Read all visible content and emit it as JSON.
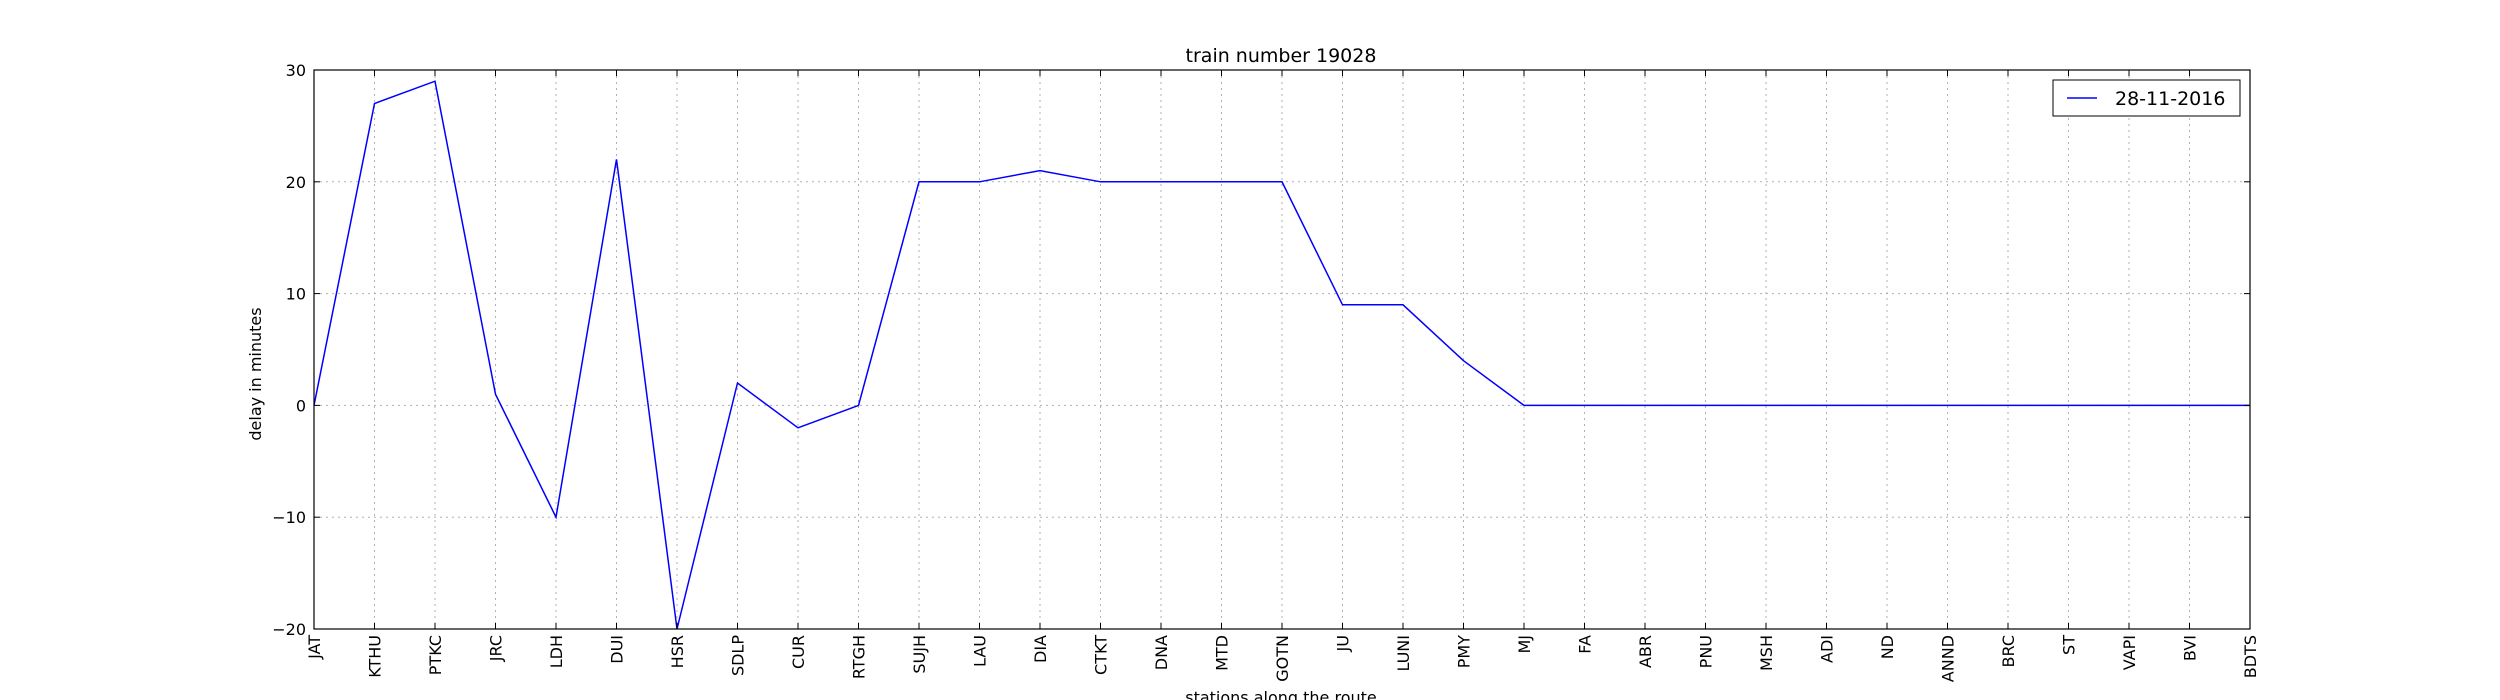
{
  "chart_data": {
    "type": "line",
    "title": "train number 19028",
    "xlabel": "stations along the route",
    "ylabel": "delay in minutes",
    "ylim": [
      -20,
      30
    ],
    "yticks": [
      30,
      20,
      10,
      0,
      -10,
      -20
    ],
    "y_tick_labels": [
      "30",
      "20",
      "10",
      "0",
      "−10",
      "−20"
    ],
    "grid": true,
    "legend_position": "top-right",
    "categories": [
      "JAT",
      "KTHU",
      "PTKC",
      "JRC",
      "LDH",
      "DUI",
      "HSR",
      "SDLP",
      "CUR",
      "RTGH",
      "SUJH",
      "LAU",
      "DIA",
      "CTKT",
      "DNA",
      "MTD",
      "GOTN",
      "JU",
      "LUNI",
      "PMY",
      "MJ",
      "FA",
      "ABR",
      "PNU",
      "MSH",
      "ADI",
      "ND",
      "ANND",
      "BRC",
      "ST",
      "VAPI",
      "BVI",
      "BDTS"
    ],
    "series": [
      {
        "name": "28-11-2016",
        "color": "#0000ff",
        "values": [
          0,
          27,
          29,
          1,
          -10,
          22,
          -20,
          2,
          -2,
          0,
          20,
          20,
          21,
          20,
          20,
          20,
          20,
          9,
          9,
          4,
          0,
          0,
          0,
          0,
          0,
          0,
          0,
          0,
          0,
          0,
          0,
          0,
          0
        ]
      }
    ]
  }
}
